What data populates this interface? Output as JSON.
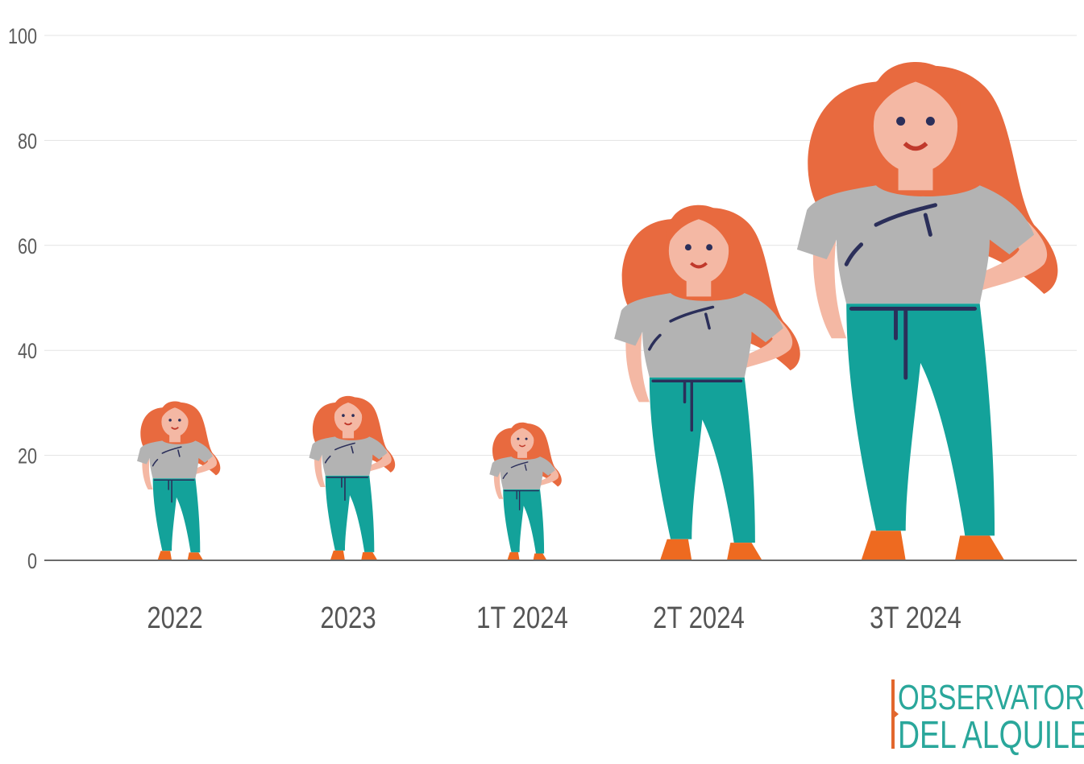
{
  "chart_data": {
    "type": "bar",
    "categories": [
      "2022",
      "2023",
      "1T 2024",
      "2T 2024",
      "3T 2024"
    ],
    "values": [
      30,
      31,
      26,
      67,
      94
    ],
    "yticks": [
      0,
      20,
      40,
      60,
      80,
      100
    ],
    "ylim": [
      0,
      100
    ],
    "title": "",
    "xlabel": "",
    "ylabel": "",
    "grid": true,
    "legend": "none",
    "mark_style": "woman-figure-icon",
    "colors": {
      "grid": "#e3e3e3",
      "axis": "#6b6b6b",
      "hair": "#e86a3f",
      "skin": "#f4b8a4",
      "shirt": "#b3b3b3",
      "pants": "#13a29a",
      "shoes": "#ee6a20",
      "lines": "#2b2f5a"
    }
  },
  "logo": {
    "line1": "OBSERVATORIO",
    "line2": "DEL ALQUILER",
    "accent": "#e2672d",
    "text_color": "#2aa79b"
  }
}
